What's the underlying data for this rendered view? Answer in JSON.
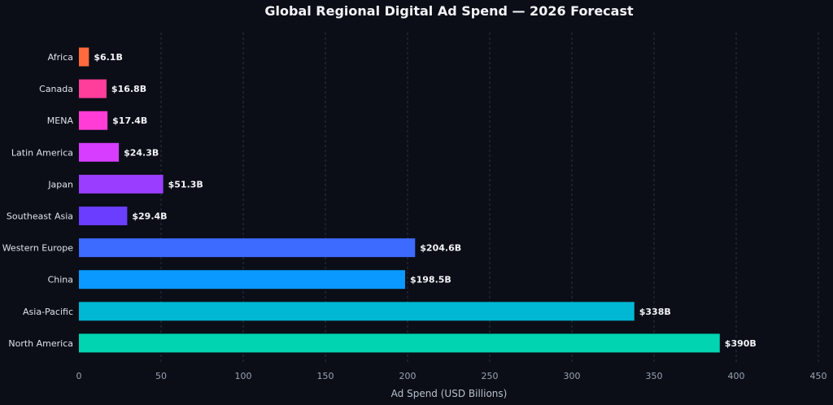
{
  "chart_data": {
    "type": "bar",
    "orientation": "horizontal",
    "title": "Global Regional Digital Ad Spend — 2026 Forecast",
    "xlabel": "Ad Spend (USD Billions)",
    "ylabel": "",
    "xlim": [
      0,
      450
    ],
    "xticks": [
      0,
      50,
      100,
      150,
      200,
      250,
      300,
      350,
      400,
      450
    ],
    "grid": true,
    "categories": [
      "Africa",
      "Canada",
      "MENA",
      "Latin America",
      "Japan",
      "Southeast Asia",
      "Western Europe",
      "China",
      "Asia-Pacific",
      "North America"
    ],
    "values": [
      6.1,
      16.8,
      17.4,
      24.3,
      51.3,
      29.4,
      204.6,
      198.5,
      338,
      390
    ],
    "value_labels": [
      "$6.1B",
      "$16.8B",
      "$17.4B",
      "$24.3B",
      "$51.3B",
      "$29.4B",
      "$204.6B",
      "$198.5B",
      "$338B",
      "$390B"
    ],
    "colors": [
      "#ff6a3d",
      "#ff3d9a",
      "#ff3dd6",
      "#d63dff",
      "#9a3dff",
      "#6a3dff",
      "#3d6aff",
      "#0a9aff",
      "#00b8d4",
      "#00d4b0"
    ]
  },
  "theme": {
    "background": "#0b0e17"
  }
}
